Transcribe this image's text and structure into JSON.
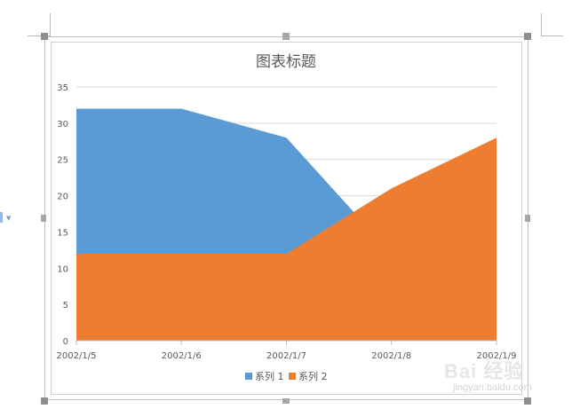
{
  "chart_data": {
    "type": "area",
    "title": "图表标题",
    "categories": [
      "2002/1/5",
      "2002/1/6",
      "2002/1/7",
      "2002/1/8",
      "2002/1/9"
    ],
    "series": [
      {
        "name": "系列 1",
        "values": [
          32,
          32,
          28,
          12,
          15
        ],
        "color": "#5b9bd5"
      },
      {
        "name": "系列 2",
        "values": [
          12,
          12,
          12,
          21,
          28
        ],
        "color": "#ed7d31"
      }
    ],
    "ylim": [
      0,
      35
    ],
    "yticks": [
      0,
      5,
      10,
      15,
      20,
      25,
      30,
      35
    ],
    "grid": true,
    "legend": "bottom",
    "xlabel": "",
    "ylabel": ""
  },
  "watermark": {
    "text": "Bai 经验",
    "url": "jingyan.baidu.com"
  },
  "colors": {
    "gridline": "#d9d9d9",
    "axis_text": "#595959",
    "title_text": "#595959"
  }
}
